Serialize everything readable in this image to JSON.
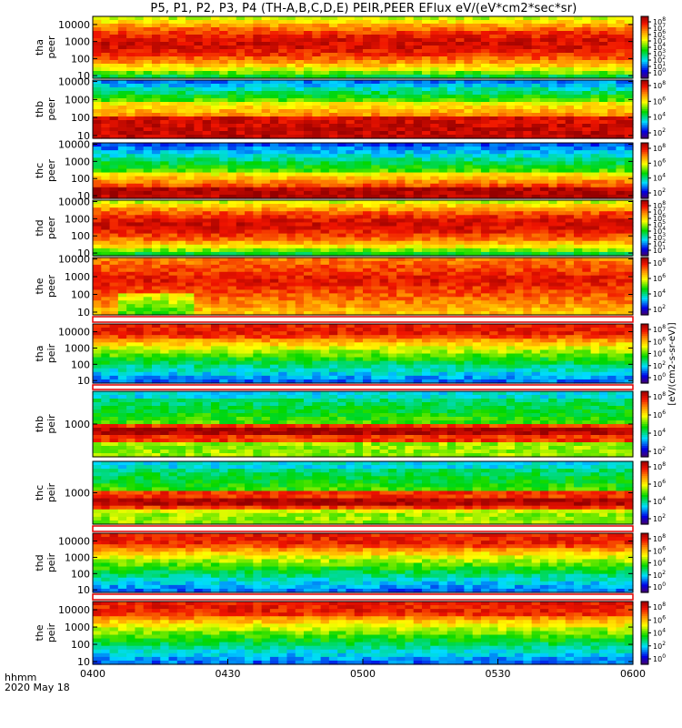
{
  "chart_data": {
    "type": "heatmap",
    "title": "P5, P1, P2, P3, P4 (TH-A,B,C,D,E) PEIR,PEER EFlux eV/(eV*cm2*sec*sr)",
    "x_axis": {
      "ticks": [
        "0400",
        "0430",
        "0500",
        "0530",
        "0600"
      ],
      "range": [
        "0400",
        "0600"
      ],
      "unit_label": "hhmm",
      "date": "2020 May 18"
    },
    "colorbar_label": "[eV/(cm2-s-sr-eV)]",
    "panels": [
      {
        "probe": "tha",
        "species": "peer",
        "ylim": [
          7,
          30000
        ],
        "log_y": true,
        "y_ticks": [
          "10000",
          "1000",
          "100",
          "10"
        ],
        "cb_ticks": [
          "8",
          "7",
          "6",
          "5",
          "4",
          "3",
          "2",
          "1",
          "0"
        ],
        "style": "peer_hot"
      },
      {
        "probe": "thb",
        "species": "peer",
        "ylim": [
          7,
          12000
        ],
        "log_y": true,
        "y_ticks": [
          "10000",
          "1000",
          "100",
          "10"
        ],
        "cb_ticks": [
          "8",
          "6",
          "4",
          "2"
        ],
        "style": "peer_lowhot"
      },
      {
        "probe": "thc",
        "species": "peer",
        "ylim": [
          7,
          12000
        ],
        "log_y": true,
        "y_ticks": [
          "10000",
          "1000",
          "100",
          "10"
        ],
        "cb_ticks": [
          "8",
          "6",
          "4",
          "2"
        ],
        "style": "peer_noisy"
      },
      {
        "probe": "thd",
        "species": "peer",
        "ylim": [
          7,
          12000
        ],
        "log_y": true,
        "y_ticks": [
          "10000",
          "1000",
          "100",
          "10"
        ],
        "cb_ticks": [
          "8",
          "7",
          "6",
          "5",
          "4",
          "3",
          "2",
          "1"
        ],
        "style": "peer_hot"
      },
      {
        "probe": "the",
        "species": "peer",
        "ylim": [
          7,
          12000
        ],
        "log_y": true,
        "y_ticks": [
          "10000",
          "1000",
          "100",
          "10"
        ],
        "cb_ticks": [
          "8",
          "6",
          "4",
          "2"
        ],
        "style": "peer_e"
      },
      {
        "probe": "tha",
        "species": "peir",
        "ylim": [
          7,
          30000
        ],
        "log_y": true,
        "y_ticks": [
          "10000",
          "1000",
          "100",
          "10"
        ],
        "cb_ticks": [
          "8",
          "6",
          "4",
          "2",
          "0"
        ],
        "style": "peir_hi"
      },
      {
        "probe": "thb",
        "species": "peir",
        "ylim": [
          200,
          5000
        ],
        "log_y": true,
        "y_ticks": [
          "1000"
        ],
        "cb_ticks": [
          "8",
          "6",
          "4",
          "2"
        ],
        "style": "peir_band"
      },
      {
        "probe": "thc",
        "species": "peir",
        "ylim": [
          200,
          5000
        ],
        "log_y": true,
        "y_ticks": [
          "1000"
        ],
        "cb_ticks": [
          "8",
          "6",
          "4",
          "2"
        ],
        "style": "peir_band"
      },
      {
        "probe": "thd",
        "species": "peir",
        "ylim": [
          7,
          30000
        ],
        "log_y": true,
        "y_ticks": [
          "10000",
          "1000",
          "100",
          "10"
        ],
        "cb_ticks": [
          "8",
          "6",
          "4",
          "2",
          "0"
        ],
        "style": "peir_hi"
      },
      {
        "probe": "the",
        "species": "peir",
        "ylim": [
          7,
          30000
        ],
        "log_y": true,
        "y_ticks": [
          "10000",
          "1000",
          "100",
          "10"
        ],
        "cb_ticks": [
          "8",
          "6",
          "4",
          "2",
          "0"
        ],
        "style": "peir_hi"
      }
    ]
  }
}
